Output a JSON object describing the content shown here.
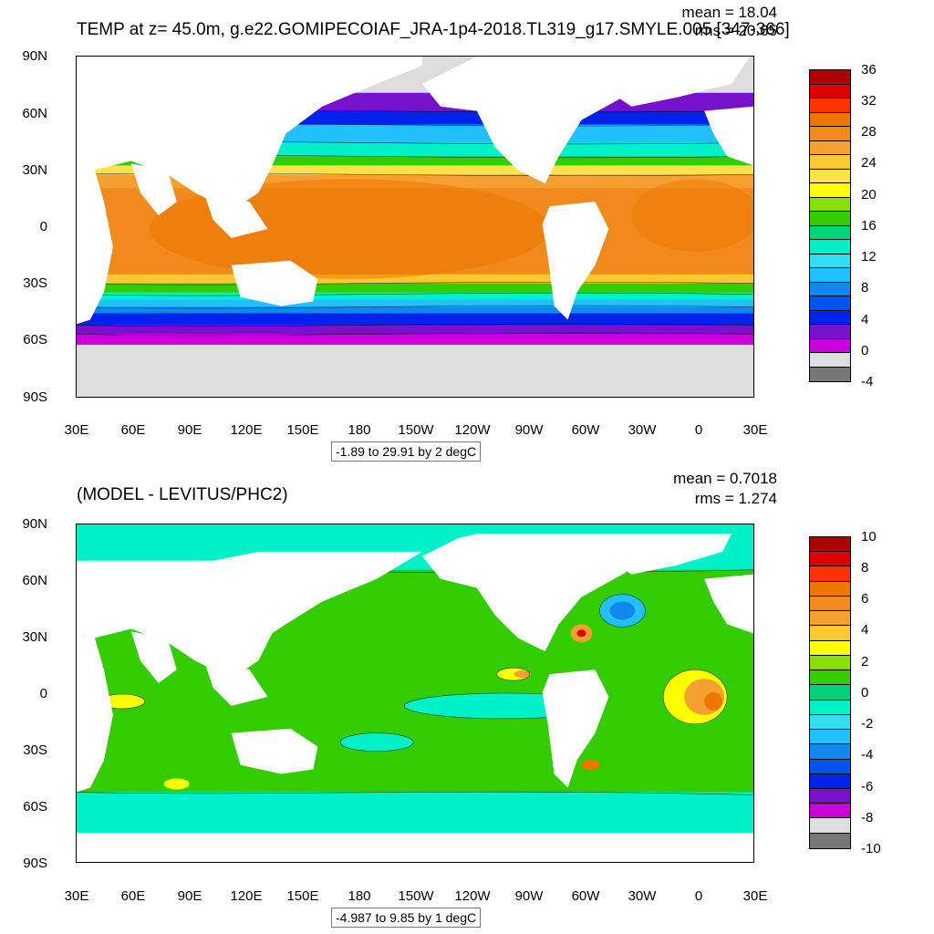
{
  "top": {
    "title": "TEMP at z=  45.0m, g.e22.GOMIPECOIAF_JRA-1p4-2018.TL319_g17.SMYLE.005 [347-366]",
    "mean": "mean = 18.04",
    "rms": "rms = 20.65",
    "range": "-1.89 to 29.91 by 2 degC",
    "colorbar_labels": [
      "36",
      "32",
      "28",
      "24",
      "20",
      "16",
      "12",
      "8",
      "4",
      "0",
      "-4"
    ],
    "colors": [
      "#b00000",
      "#dd0000",
      "#ff3300",
      "#ee7700",
      "#f08a1c",
      "#f5a030",
      "#ffc830",
      "#ffe14a",
      "#ffff00",
      "#88e000",
      "#33cc00",
      "#00d27a",
      "#00f0c8",
      "#33e0f2",
      "#22c0ff",
      "#1188ee",
      "#0055ee",
      "#0022ee",
      "#7711cc",
      "#cc00dd",
      "#dddddd",
      "#777777"
    ]
  },
  "bottom": {
    "title": "(MODEL - LEVITUS/PHC2)",
    "mean": "mean = 0.7018",
    "rms": "rms = 1.274",
    "range": "-4.987 to 9.85 by 1 degC",
    "colorbar_labels": [
      "10",
      "8",
      "6",
      "4",
      "2",
      "0",
      "-2",
      "-4",
      "-6",
      "-8",
      "-10"
    ],
    "colors": [
      "#b00000",
      "#dd0000",
      "#ff3300",
      "#ee7700",
      "#f08a1c",
      "#f5a030",
      "#ffc830",
      "#ffff00",
      "#88e000",
      "#33cc00",
      "#00d27a",
      "#00f0c8",
      "#33e0f2",
      "#22c0ff",
      "#1188ee",
      "#0055ee",
      "#0022ee",
      "#7711cc",
      "#cc00dd",
      "#dddddd",
      "#777777"
    ]
  },
  "axes": {
    "lat_labels": [
      "90N",
      "60N",
      "30N",
      "0",
      "30S",
      "60S",
      "90S"
    ],
    "lon_labels": [
      "30E",
      "60E",
      "90E",
      "120E",
      "150E",
      "180",
      "150W",
      "120W",
      "90W",
      "60W",
      "30W",
      "0",
      "30E"
    ]
  }
}
